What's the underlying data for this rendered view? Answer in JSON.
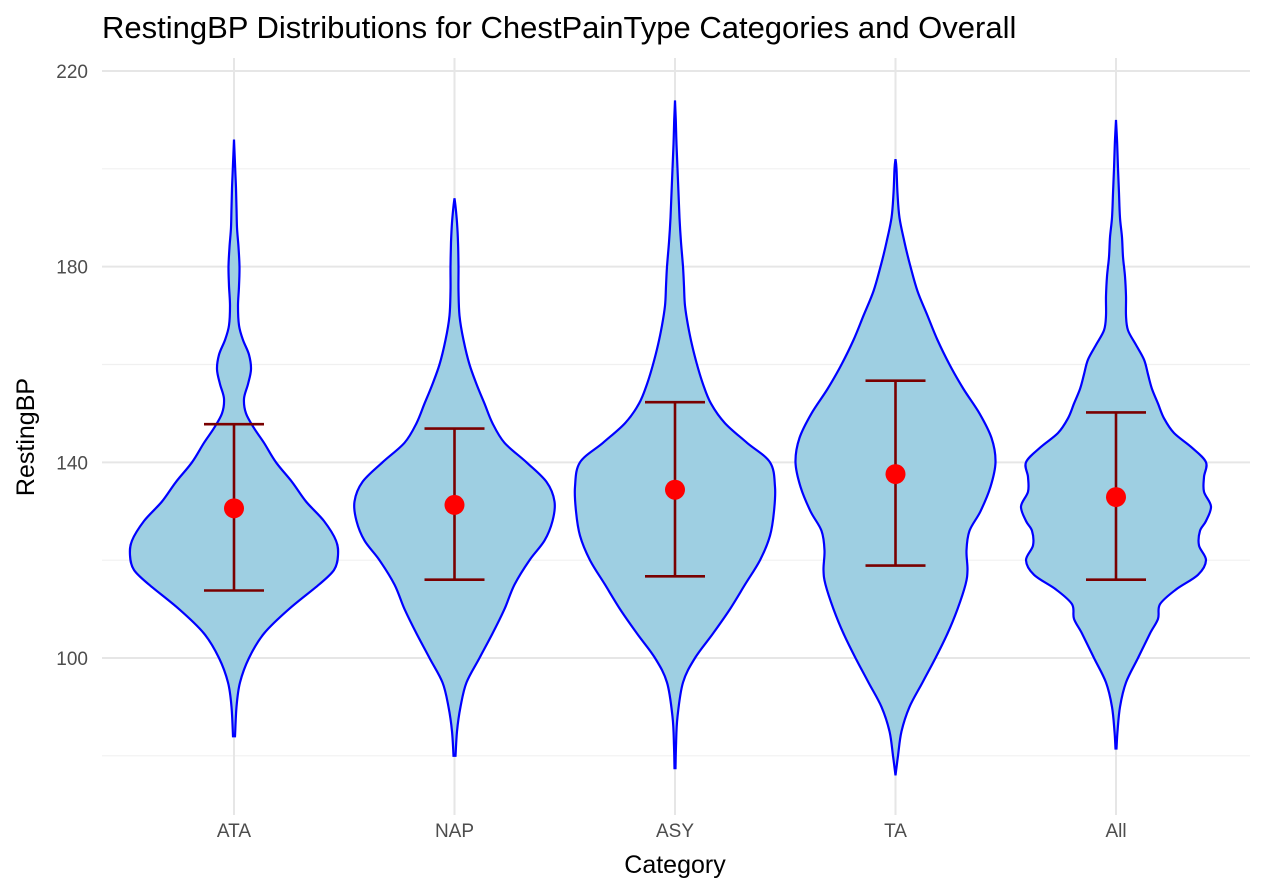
{
  "chart_data": {
    "type": "violin",
    "title": "RestingBP Distributions for ChestPainType Categories and Overall",
    "xlabel": "Category",
    "ylabel": "RestingBP",
    "categories": [
      "ATA",
      "NAP",
      "ASY",
      "TA",
      "All"
    ],
    "ylim": [
      77,
      221
    ],
    "y_ticks": [
      100,
      140,
      180,
      220
    ],
    "grid": true,
    "colors": {
      "violin_fill": "#9ecfe2",
      "violin_outline": "#0000ff",
      "errorbar": "#7a0000",
      "mean_point": "#ff0000"
    },
    "summary": [
      {
        "category": "ATA",
        "mean": 130.6,
        "lower": 113.8,
        "upper": 147.8,
        "min": 84,
        "max": 206
      },
      {
        "category": "NAP",
        "mean": 131.3,
        "lower": 116.0,
        "upper": 146.9,
        "min": 80,
        "max": 194
      },
      {
        "category": "ASY",
        "mean": 134.4,
        "lower": 116.7,
        "upper": 152.3,
        "min": 77.5,
        "max": 214
      },
      {
        "category": "TA",
        "mean": 137.6,
        "lower": 118.9,
        "upper": 156.7,
        "min": 76,
        "max": 202
      },
      {
        "category": "All",
        "mean": 132.9,
        "lower": 116.0,
        "upper": 150.2,
        "min": 81.5,
        "max": 210
      }
    ],
    "density_profiles": [
      {
        "category": "ATA",
        "profile": [
          [
            84,
            0.01
          ],
          [
            90,
            0.025
          ],
          [
            95,
            0.06
          ],
          [
            100,
            0.15
          ],
          [
            105,
            0.3
          ],
          [
            110,
            0.55
          ],
          [
            115,
            0.85
          ],
          [
            118,
            1.0
          ],
          [
            121,
            1.04
          ],
          [
            124,
            1.02
          ],
          [
            128,
            0.9
          ],
          [
            132,
            0.72
          ],
          [
            136,
            0.58
          ],
          [
            140,
            0.42
          ],
          [
            144,
            0.3
          ],
          [
            147,
            0.2
          ],
          [
            150,
            0.12
          ],
          [
            153,
            0.1
          ],
          [
            156,
            0.14
          ],
          [
            159,
            0.17
          ],
          [
            162,
            0.15
          ],
          [
            165,
            0.09
          ],
          [
            168,
            0.05
          ],
          [
            172,
            0.04
          ],
          [
            176,
            0.05
          ],
          [
            180,
            0.055
          ],
          [
            184,
            0.045
          ],
          [
            188,
            0.03
          ],
          [
            192,
            0.025
          ],
          [
            196,
            0.02
          ],
          [
            200,
            0.012
          ],
          [
            203,
            0.006
          ],
          [
            206,
            0.0
          ]
        ]
      },
      {
        "category": "NAP",
        "profile": [
          [
            80,
            0.01
          ],
          [
            85,
            0.025
          ],
          [
            90,
            0.06
          ],
          [
            95,
            0.12
          ],
          [
            100,
            0.25
          ],
          [
            105,
            0.38
          ],
          [
            110,
            0.5
          ],
          [
            115,
            0.6
          ],
          [
            120,
            0.75
          ],
          [
            124,
            0.9
          ],
          [
            128,
            0.98
          ],
          [
            132,
            1.0
          ],
          [
            136,
            0.92
          ],
          [
            140,
            0.72
          ],
          [
            144,
            0.5
          ],
          [
            148,
            0.38
          ],
          [
            152,
            0.3
          ],
          [
            156,
            0.22
          ],
          [
            160,
            0.15
          ],
          [
            165,
            0.09
          ],
          [
            170,
            0.05
          ],
          [
            175,
            0.04
          ],
          [
            180,
            0.04
          ],
          [
            185,
            0.035
          ],
          [
            189,
            0.025
          ],
          [
            192,
            0.012
          ],
          [
            194,
            0.0
          ]
        ]
      },
      {
        "category": "ASY",
        "profile": [
          [
            77.5,
            0.005
          ],
          [
            82,
            0.01
          ],
          [
            88,
            0.025
          ],
          [
            95,
            0.08
          ],
          [
            100,
            0.2
          ],
          [
            105,
            0.38
          ],
          [
            110,
            0.55
          ],
          [
            115,
            0.7
          ],
          [
            120,
            0.85
          ],
          [
            125,
            0.95
          ],
          [
            130,
            0.99
          ],
          [
            135,
            1.0
          ],
          [
            140,
            0.95
          ],
          [
            144,
            0.72
          ],
          [
            148,
            0.5
          ],
          [
            152,
            0.36
          ],
          [
            156,
            0.28
          ],
          [
            160,
            0.22
          ],
          [
            164,
            0.17
          ],
          [
            168,
            0.13
          ],
          [
            172,
            0.1
          ],
          [
            176,
            0.09
          ],
          [
            180,
            0.08
          ],
          [
            185,
            0.06
          ],
          [
            190,
            0.045
          ],
          [
            195,
            0.035
          ],
          [
            200,
            0.025
          ],
          [
            205,
            0.015
          ],
          [
            210,
            0.008
          ],
          [
            214,
            0.0
          ]
        ]
      },
      {
        "category": "TA",
        "profile": [
          [
            76,
            0.0
          ],
          [
            80,
            0.025
          ],
          [
            85,
            0.06
          ],
          [
            90,
            0.14
          ],
          [
            95,
            0.27
          ],
          [
            100,
            0.4
          ],
          [
            105,
            0.52
          ],
          [
            110,
            0.62
          ],
          [
            115,
            0.7
          ],
          [
            118,
            0.72
          ],
          [
            122,
            0.71
          ],
          [
            126,
            0.74
          ],
          [
            130,
            0.85
          ],
          [
            135,
            0.95
          ],
          [
            140,
            1.0
          ],
          [
            145,
            0.96
          ],
          [
            150,
            0.84
          ],
          [
            155,
            0.68
          ],
          [
            160,
            0.54
          ],
          [
            165,
            0.42
          ],
          [
            170,
            0.32
          ],
          [
            175,
            0.22
          ],
          [
            180,
            0.15
          ],
          [
            185,
            0.09
          ],
          [
            190,
            0.04
          ],
          [
            195,
            0.02
          ],
          [
            200,
            0.01
          ],
          [
            202,
            0.0
          ]
        ]
      },
      {
        "category": "All",
        "profile": [
          [
            81.5,
            0.005
          ],
          [
            85,
            0.015
          ],
          [
            90,
            0.04
          ],
          [
            95,
            0.1
          ],
          [
            100,
            0.22
          ],
          [
            105,
            0.34
          ],
          [
            108,
            0.42
          ],
          [
            111,
            0.44
          ],
          [
            114,
            0.6
          ],
          [
            117,
            0.82
          ],
          [
            120,
            0.9
          ],
          [
            123,
            0.83
          ],
          [
            126,
            0.84
          ],
          [
            128,
            0.9
          ],
          [
            131,
            0.95
          ],
          [
            134,
            0.88
          ],
          [
            137,
            0.88
          ],
          [
            140,
            0.9
          ],
          [
            143,
            0.76
          ],
          [
            146,
            0.58
          ],
          [
            149,
            0.48
          ],
          [
            152,
            0.42
          ],
          [
            155,
            0.36
          ],
          [
            158,
            0.32
          ],
          [
            161,
            0.28
          ],
          [
            164,
            0.2
          ],
          [
            167,
            0.12
          ],
          [
            170,
            0.1
          ],
          [
            174,
            0.1
          ],
          [
            178,
            0.09
          ],
          [
            182,
            0.07
          ],
          [
            186,
            0.06
          ],
          [
            190,
            0.04
          ],
          [
            195,
            0.03
          ],
          [
            200,
            0.02
          ],
          [
            205,
            0.012
          ],
          [
            210,
            0.0
          ]
        ]
      }
    ]
  }
}
